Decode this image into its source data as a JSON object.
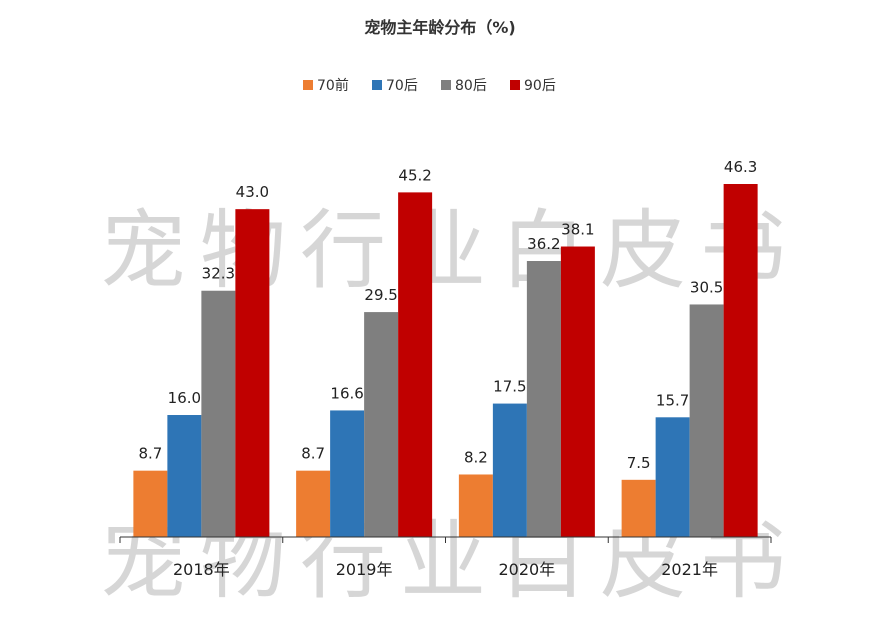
{
  "chart_data": {
    "type": "bar",
    "title": "宠物主年龄分布（%)",
    "categories": [
      "2018年",
      "2019年",
      "2020年",
      "2021年"
    ],
    "series": [
      {
        "name": "70前",
        "color": "#ED7D31",
        "values": [
          8.7,
          8.7,
          8.2,
          7.5
        ]
      },
      {
        "name": "70后",
        "color": "#2E75B6",
        "values": [
          16.0,
          16.6,
          17.5,
          15.7
        ]
      },
      {
        "name": "80后",
        "color": "#7F7F7F",
        "values": [
          32.3,
          29.5,
          36.2,
          30.5
        ]
      },
      {
        "name": "90后",
        "color": "#C00000",
        "values": [
          43.0,
          45.2,
          38.1,
          46.3
        ]
      }
    ],
    "ylim": [
      0,
      50
    ],
    "grid": false,
    "legend_position": "top"
  },
  "watermark": {
    "text": "宠物行业白皮书",
    "color": "#CFCFCF"
  }
}
